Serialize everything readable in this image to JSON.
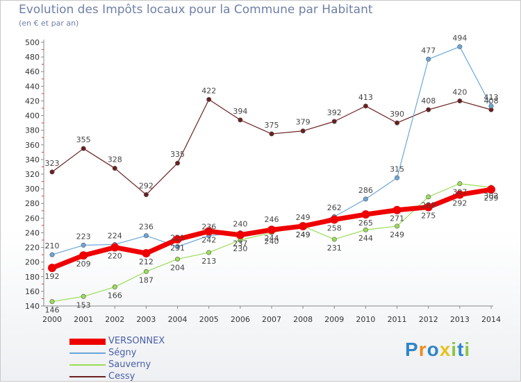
{
  "header": {
    "title": "Evolution des Impôts locaux pour la Commune par Habitant",
    "subtitle": "(en € et par an)"
  },
  "chart_data": {
    "type": "line",
    "title": "Evolution des Impôts locaux pour la Commune par Habitant",
    "subtitle": "(en € et par an)",
    "xlabel": "",
    "ylabel": "",
    "x": [
      "2000",
      "2001",
      "2002",
      "2003",
      "2004",
      "2005",
      "2006",
      "2007",
      "2008",
      "2009",
      "2010",
      "2011",
      "2012",
      "2013",
      "2014"
    ],
    "ylim": [
      140,
      500
    ],
    "ytick_step": 20,
    "grid": false,
    "legend_position": "bottom-left",
    "series": [
      {
        "name": "VERSONNEX",
        "color": "#ee0000",
        "values": [
          192,
          209,
          220,
          212,
          231,
          242,
          237,
          244,
          249,
          258,
          265,
          271,
          275,
          292,
          299
        ]
      },
      {
        "name": "Ségny",
        "color": "#6aa7d9",
        "values": [
          210,
          223,
          224,
          236,
          221,
          236,
          240,
          246,
          249,
          262,
          286,
          315,
          477,
          494,
          413
        ]
      },
      {
        "name": "Sauverny",
        "color": "#99dd55",
        "values": [
          146,
          153,
          166,
          187,
          204,
          213,
          230,
          240,
          249,
          231,
          244,
          249,
          289,
          307,
          302
        ]
      },
      {
        "name": "Cessy",
        "color": "#6b1f1f",
        "values": [
          323,
          355,
          328,
          292,
          335,
          422,
          394,
          375,
          379,
          392,
          413,
          390,
          408,
          420,
          408
        ]
      }
    ]
  },
  "brand": {
    "letters": [
      "P",
      "r",
      "o",
      "x",
      "i",
      "t",
      "i"
    ],
    "colors": [
      "#2f86c8",
      "#f08a1c",
      "#2f86c8",
      "#e8c21c",
      "#8cc63f",
      "#2f86c8",
      "#8cc63f"
    ]
  }
}
